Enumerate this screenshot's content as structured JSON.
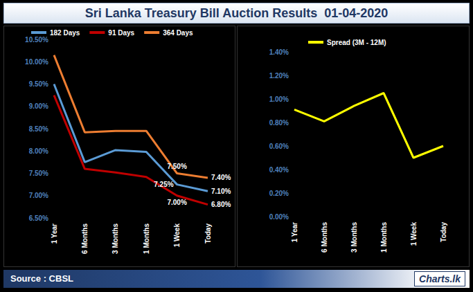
{
  "header": {
    "title": "Sri Lanka Treasury Bill Auction Results  01-04-2020"
  },
  "footer": {
    "source": "Source : CBSL",
    "logo": "Charts.lk"
  },
  "chart_data": [
    {
      "type": "line",
      "categories": [
        "1 Year",
        "6 Months",
        "3 Months",
        "1 Months",
        "1 Week",
        "Today"
      ],
      "series": [
        {
          "name": "182 Days",
          "color": "#5b9bd5",
          "values": [
            9.5,
            7.75,
            8.02,
            7.98,
            7.25,
            7.1
          ],
          "value_labels": [
            null,
            null,
            null,
            null,
            "7.25%",
            "7.10%"
          ]
        },
        {
          "name": "91 Days",
          "color": "#c00000",
          "values": [
            9.25,
            7.6,
            7.52,
            7.42,
            7.0,
            6.8
          ],
          "value_labels": [
            null,
            null,
            null,
            null,
            "7.00%",
            "6.80%"
          ]
        },
        {
          "name": "364 Days",
          "color": "#ed7d31",
          "values": [
            10.15,
            8.42,
            8.45,
            8.45,
            7.5,
            7.4
          ],
          "value_labels": [
            null,
            null,
            null,
            null,
            "7.50%",
            "7.40%"
          ]
        }
      ],
      "ylim": [
        6.5,
        10.5
      ],
      "yticks": [
        {
          "value": 6.5,
          "label": "6.50%"
        },
        {
          "value": 7,
          "label": "7.00%"
        },
        {
          "value": 7.5,
          "label": "7.50%"
        },
        {
          "value": 8,
          "label": "8.00%"
        },
        {
          "value": 8.5,
          "label": "8.50%"
        },
        {
          "value": 9,
          "label": "9.00%"
        },
        {
          "value": 9.5,
          "label": "9.50%"
        },
        {
          "value": 10,
          "label": "10.00%"
        },
        {
          "value": 10.5,
          "label": "10.50%"
        }
      ],
      "grid": false,
      "legend": "top",
      "data_labels": true
    },
    {
      "type": "line",
      "categories": [
        "1 Year",
        "6 Months",
        "3 Months",
        "1 Months",
        "1 Week",
        "Today"
      ],
      "series": [
        {
          "name": "Spread (3M - 12M)",
          "color": "#ffff00",
          "values": [
            0.91,
            0.81,
            0.94,
            1.05,
            0.5,
            0.6
          ]
        }
      ],
      "ylim": [
        0,
        1.4
      ],
      "yticks": [
        {
          "value": 0,
          "label": "0.00%"
        },
        {
          "value": 0.2,
          "label": "0.20%"
        },
        {
          "value": 0.4,
          "label": "0.40%"
        },
        {
          "value": 0.6,
          "label": "0.60%"
        },
        {
          "value": 0.8,
          "label": "0.80%"
        },
        {
          "value": 1,
          "label": "1.00%"
        },
        {
          "value": 1.2,
          "label": "1.20%"
        },
        {
          "value": 1.4,
          "label": "1.40%"
        }
      ],
      "grid": false,
      "legend": "top"
    }
  ]
}
